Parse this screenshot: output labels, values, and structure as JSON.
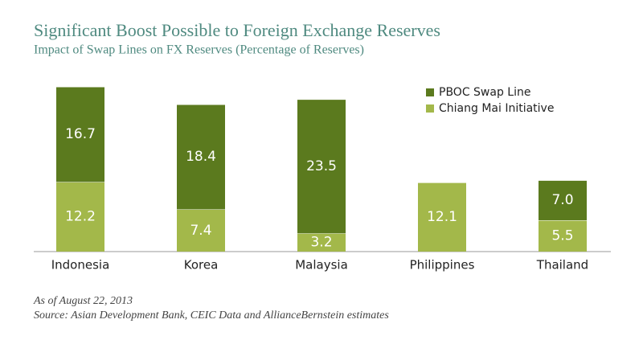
{
  "chart_data": {
    "type": "stacked_bar",
    "title": "Significant Boost Possible to Foreign Exchange Reserves",
    "subtitle": "Impact of Swap Lines on FX Reserves (Percentage of Reserves)",
    "categories": [
      "Indonesia",
      "Korea",
      "Malaysia",
      "Philippines",
      "Thailand"
    ],
    "series": [
      {
        "name": "PBOC Swap Line",
        "color": "#5b7a1e",
        "values": [
          16.7,
          18.4,
          23.5,
          null,
          7.0
        ],
        "value_labels": [
          "16.7",
          "18.4",
          "23.5",
          null,
          "7.0"
        ]
      },
      {
        "name": "Chiang Mai Initiative",
        "color": "#a3b84a",
        "values": [
          12.2,
          7.4,
          3.2,
          12.1,
          5.5
        ]
      }
    ],
    "note": "As of August 22, 2013",
    "source": "Source: Asian Development Bank, CEIC Data and AllianceBernstein estimates"
  }
}
